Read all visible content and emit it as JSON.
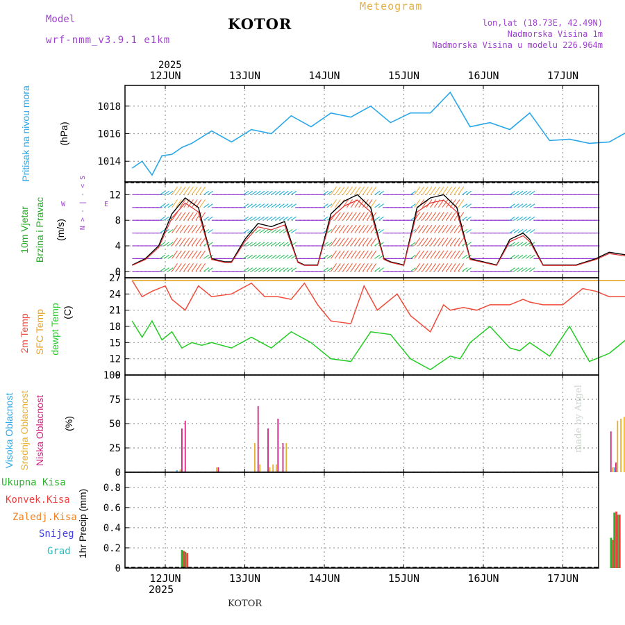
{
  "header": {
    "model_label": "Model",
    "model_name": "wrf-nmm_v3.9.1 e1km",
    "location": "KOTOR",
    "meteogram": "Meteogram",
    "coords": "lon,lat (18.73E, 42.49N)",
    "altitude": "Nadmorska Visina 1m",
    "model_altitude": "Nadmorska Visina u modelu 226.964m",
    "footer_location": "KOTOR",
    "watermark": "made by Angel",
    "year_top": "2025",
    "year_bottom": "2025"
  },
  "colors": {
    "pressure": "#2aa7e8",
    "temp2m": "#f04a3a",
    "sfc_temp": "#e8a020",
    "dewpoint": "#22cc22",
    "cloud_high": "#2aa7e8",
    "cloud_mid": "#e8b030",
    "cloud_low": "#d02080",
    "rain_total": "#30b030",
    "rain_conv": "#f04040",
    "rain_frozen": "#f08020",
    "snow": "#4040e0",
    "grad": "#20c0c0",
    "purple": "#a040d0"
  },
  "chart_data": [
    {
      "type": "line",
      "panel": "pressure",
      "ylabel_title": "Pritisak na nivou mora",
      "ylabel_unit": "(hPa)",
      "ylim": [
        1012.5,
        1019.5
      ],
      "yticks": [
        1014,
        1016,
        1018
      ],
      "x_start": "2025-06-11T14:00",
      "x_end": "2025-06-17T12:00",
      "x_ticks": [
        "12JUN",
        "13JUN",
        "14JUN",
        "15JUN",
        "16JUN",
        "17JUN"
      ],
      "grid": true,
      "series": [
        {
          "x": [
            0,
            3,
            6,
            9,
            12,
            15,
            18,
            24,
            30,
            36,
            42,
            48,
            54,
            60,
            66,
            72,
            78,
            84,
            90,
            96,
            102,
            108,
            114,
            120,
            126,
            132,
            138,
            144,
            150,
            156
          ],
          "values": [
            1013.5,
            1014.0,
            1013.0,
            1014.4,
            1014.5,
            1015.0,
            1015.3,
            1016.2,
            1015.4,
            1016.3,
            1016.0,
            1017.3,
            1016.5,
            1017.5,
            1017.2,
            1018.0,
            1016.8,
            1017.5,
            1017.5,
            1019.0,
            1016.5,
            1016.8,
            1016.3,
            1017.5,
            1015.5,
            1015.6,
            1015.3,
            1015.4,
            1016.2,
            1015.9
          ]
        }
      ]
    },
    {
      "type": "line",
      "panel": "wind",
      "ylabel_title": "10m Vjetar",
      "ylabel_title2": "Brzina i Pravac",
      "ylabel_unit": "(m/s)",
      "compass": {
        "n": "N",
        "s": "S",
        "e": "E",
        "w": "W"
      },
      "ylim": [
        -1,
        14
      ],
      "yticks": [
        0,
        4,
        8,
        12
      ],
      "series": [
        {
          "name": "speed",
          "x": [
            0,
            4,
            8,
            12,
            16,
            20,
            24,
            28,
            30,
            34,
            38,
            42,
            46,
            50,
            52,
            56,
            60,
            64,
            68,
            72,
            76,
            78,
            82,
            86,
            90,
            94,
            98,
            102,
            106,
            110,
            114,
            118,
            120,
            124,
            128,
            134,
            140,
            144,
            150,
            156
          ],
          "values": [
            1.0,
            2.0,
            4.0,
            9.0,
            11.5,
            10.0,
            2.0,
            1.5,
            1.5,
            5.0,
            7.5,
            7.0,
            7.8,
            1.5,
            1.0,
            1.0,
            9.0,
            11.0,
            12.0,
            10.0,
            2.0,
            1.5,
            1.0,
            10.0,
            11.5,
            12.0,
            10.0,
            2.0,
            1.5,
            1.0,
            5.0,
            6.0,
            5.0,
            1.0,
            1.0,
            1.0,
            2.0,
            3.0,
            2.5,
            2.0
          ]
        }
      ]
    },
    {
      "type": "line",
      "panel": "temperature",
      "ylabel_title": "2m Temp",
      "ylabel_title2": "SFC Temp",
      "ylabel_title3": "dewpt Temp",
      "ylabel_unit": "(C)",
      "ylim": [
        9,
        27
      ],
      "yticks": [
        9,
        12,
        15,
        18,
        21,
        24,
        27
      ],
      "series": [
        {
          "name": "2m Temp",
          "x": [
            0,
            3,
            6,
            10,
            12,
            16,
            20,
            24,
            30,
            36,
            40,
            44,
            48,
            52,
            56,
            60,
            66,
            70,
            74,
            76,
            80,
            84,
            90,
            94,
            96,
            100,
            104,
            108,
            114,
            118,
            120,
            124,
            130,
            136,
            140,
            144,
            150,
            156
          ],
          "values": [
            26.5,
            23.5,
            24.5,
            25.5,
            23.0,
            21.0,
            25.5,
            23.5,
            24.0,
            26.0,
            23.5,
            23.5,
            23.0,
            26.0,
            22.0,
            19.0,
            18.5,
            25.5,
            21.0,
            22.0,
            24.0,
            20.0,
            17.0,
            22.0,
            21.0,
            21.5,
            21.0,
            22.0,
            22.0,
            23.0,
            22.5,
            22.0,
            22.0,
            25.0,
            24.5,
            23.5,
            23.5,
            24.0
          ]
        },
        {
          "name": "SFC Temp",
          "x": [
            0,
            156
          ],
          "values": [
            26.5,
            26.5
          ]
        },
        {
          "name": "dewpt Temp",
          "x": [
            0,
            3,
            6,
            9,
            12,
            15,
            18,
            21,
            24,
            30,
            36,
            42,
            48,
            54,
            60,
            66,
            72,
            78,
            84,
            90,
            96,
            99,
            102,
            108,
            114,
            117,
            120,
            126,
            132,
            138,
            144,
            150,
            156
          ],
          "values": [
            19.0,
            16.0,
            19.0,
            15.5,
            17.0,
            14.0,
            15.0,
            14.5,
            15.0,
            14.0,
            16.0,
            14.0,
            17.0,
            15.0,
            12.0,
            11.5,
            17.0,
            16.5,
            12.0,
            10.0,
            12.5,
            12.0,
            15.0,
            18.0,
            14.0,
            13.5,
            15.0,
            12.5,
            18.0,
            11.5,
            13.0,
            16.0,
            12.0
          ]
        }
      ]
    },
    {
      "type": "bar",
      "panel": "clouds",
      "ylabel_title": "Visoka Oblacnost",
      "ylabel_title2": "Srednja Oblacnost",
      "ylabel_title3": "Niska Oblacnost",
      "ylabel_unit": "(%)",
      "ylim": [
        0,
        100
      ],
      "yticks": [
        0,
        25,
        50,
        75,
        100
      ],
      "series": [
        {
          "name": "Visoka",
          "x": [
            13.5,
            145.5
          ],
          "values": [
            2,
            5
          ]
        },
        {
          "name": "Srednja",
          "x": [
            14.5,
            25.5,
            37.0,
            38.5,
            41.5,
            42.5,
            43.5,
            46.5,
            145.0,
            146.5,
            147.5,
            148.5,
            153.5,
            154.5
          ],
          "values": [
            3,
            5,
            30,
            8,
            5,
            8,
            8,
            30,
            5,
            53,
            55,
            57,
            68,
            38
          ]
        },
        {
          "name": "Niska",
          "x": [
            15.0,
            16.0,
            26.0,
            38.0,
            41.0,
            44.0,
            45.5,
            144.5,
            146.0,
            155.0
          ],
          "values": [
            45,
            53,
            5,
            68,
            45,
            55,
            30,
            42,
            10,
            35
          ]
        }
      ]
    },
    {
      "type": "bar",
      "panel": "precip",
      "ylabel_title": "1hr Precip (mm)",
      "legend": [
        "Ukupna Kisa",
        "Konvek.Kisa",
        "Zaledj.Kisa",
        "Snijeg",
        "Grad"
      ],
      "ylim": [
        0,
        0.95
      ],
      "yticks": [
        0,
        0.2,
        0.4,
        0.6,
        0.8
      ],
      "series": [
        {
          "name": "Ukupna Kisa",
          "x": [
            15.0,
            16.0,
            144.5,
            145.5,
            146.5
          ],
          "values": [
            0.18,
            0.16,
            0.3,
            0.55,
            0.53
          ]
        },
        {
          "name": "Konvek.Kisa",
          "x": [
            15.6,
            16.6,
            145.1,
            146.1,
            147.1
          ],
          "values": [
            0.17,
            0.15,
            0.28,
            0.56,
            0.53
          ]
        }
      ]
    }
  ]
}
